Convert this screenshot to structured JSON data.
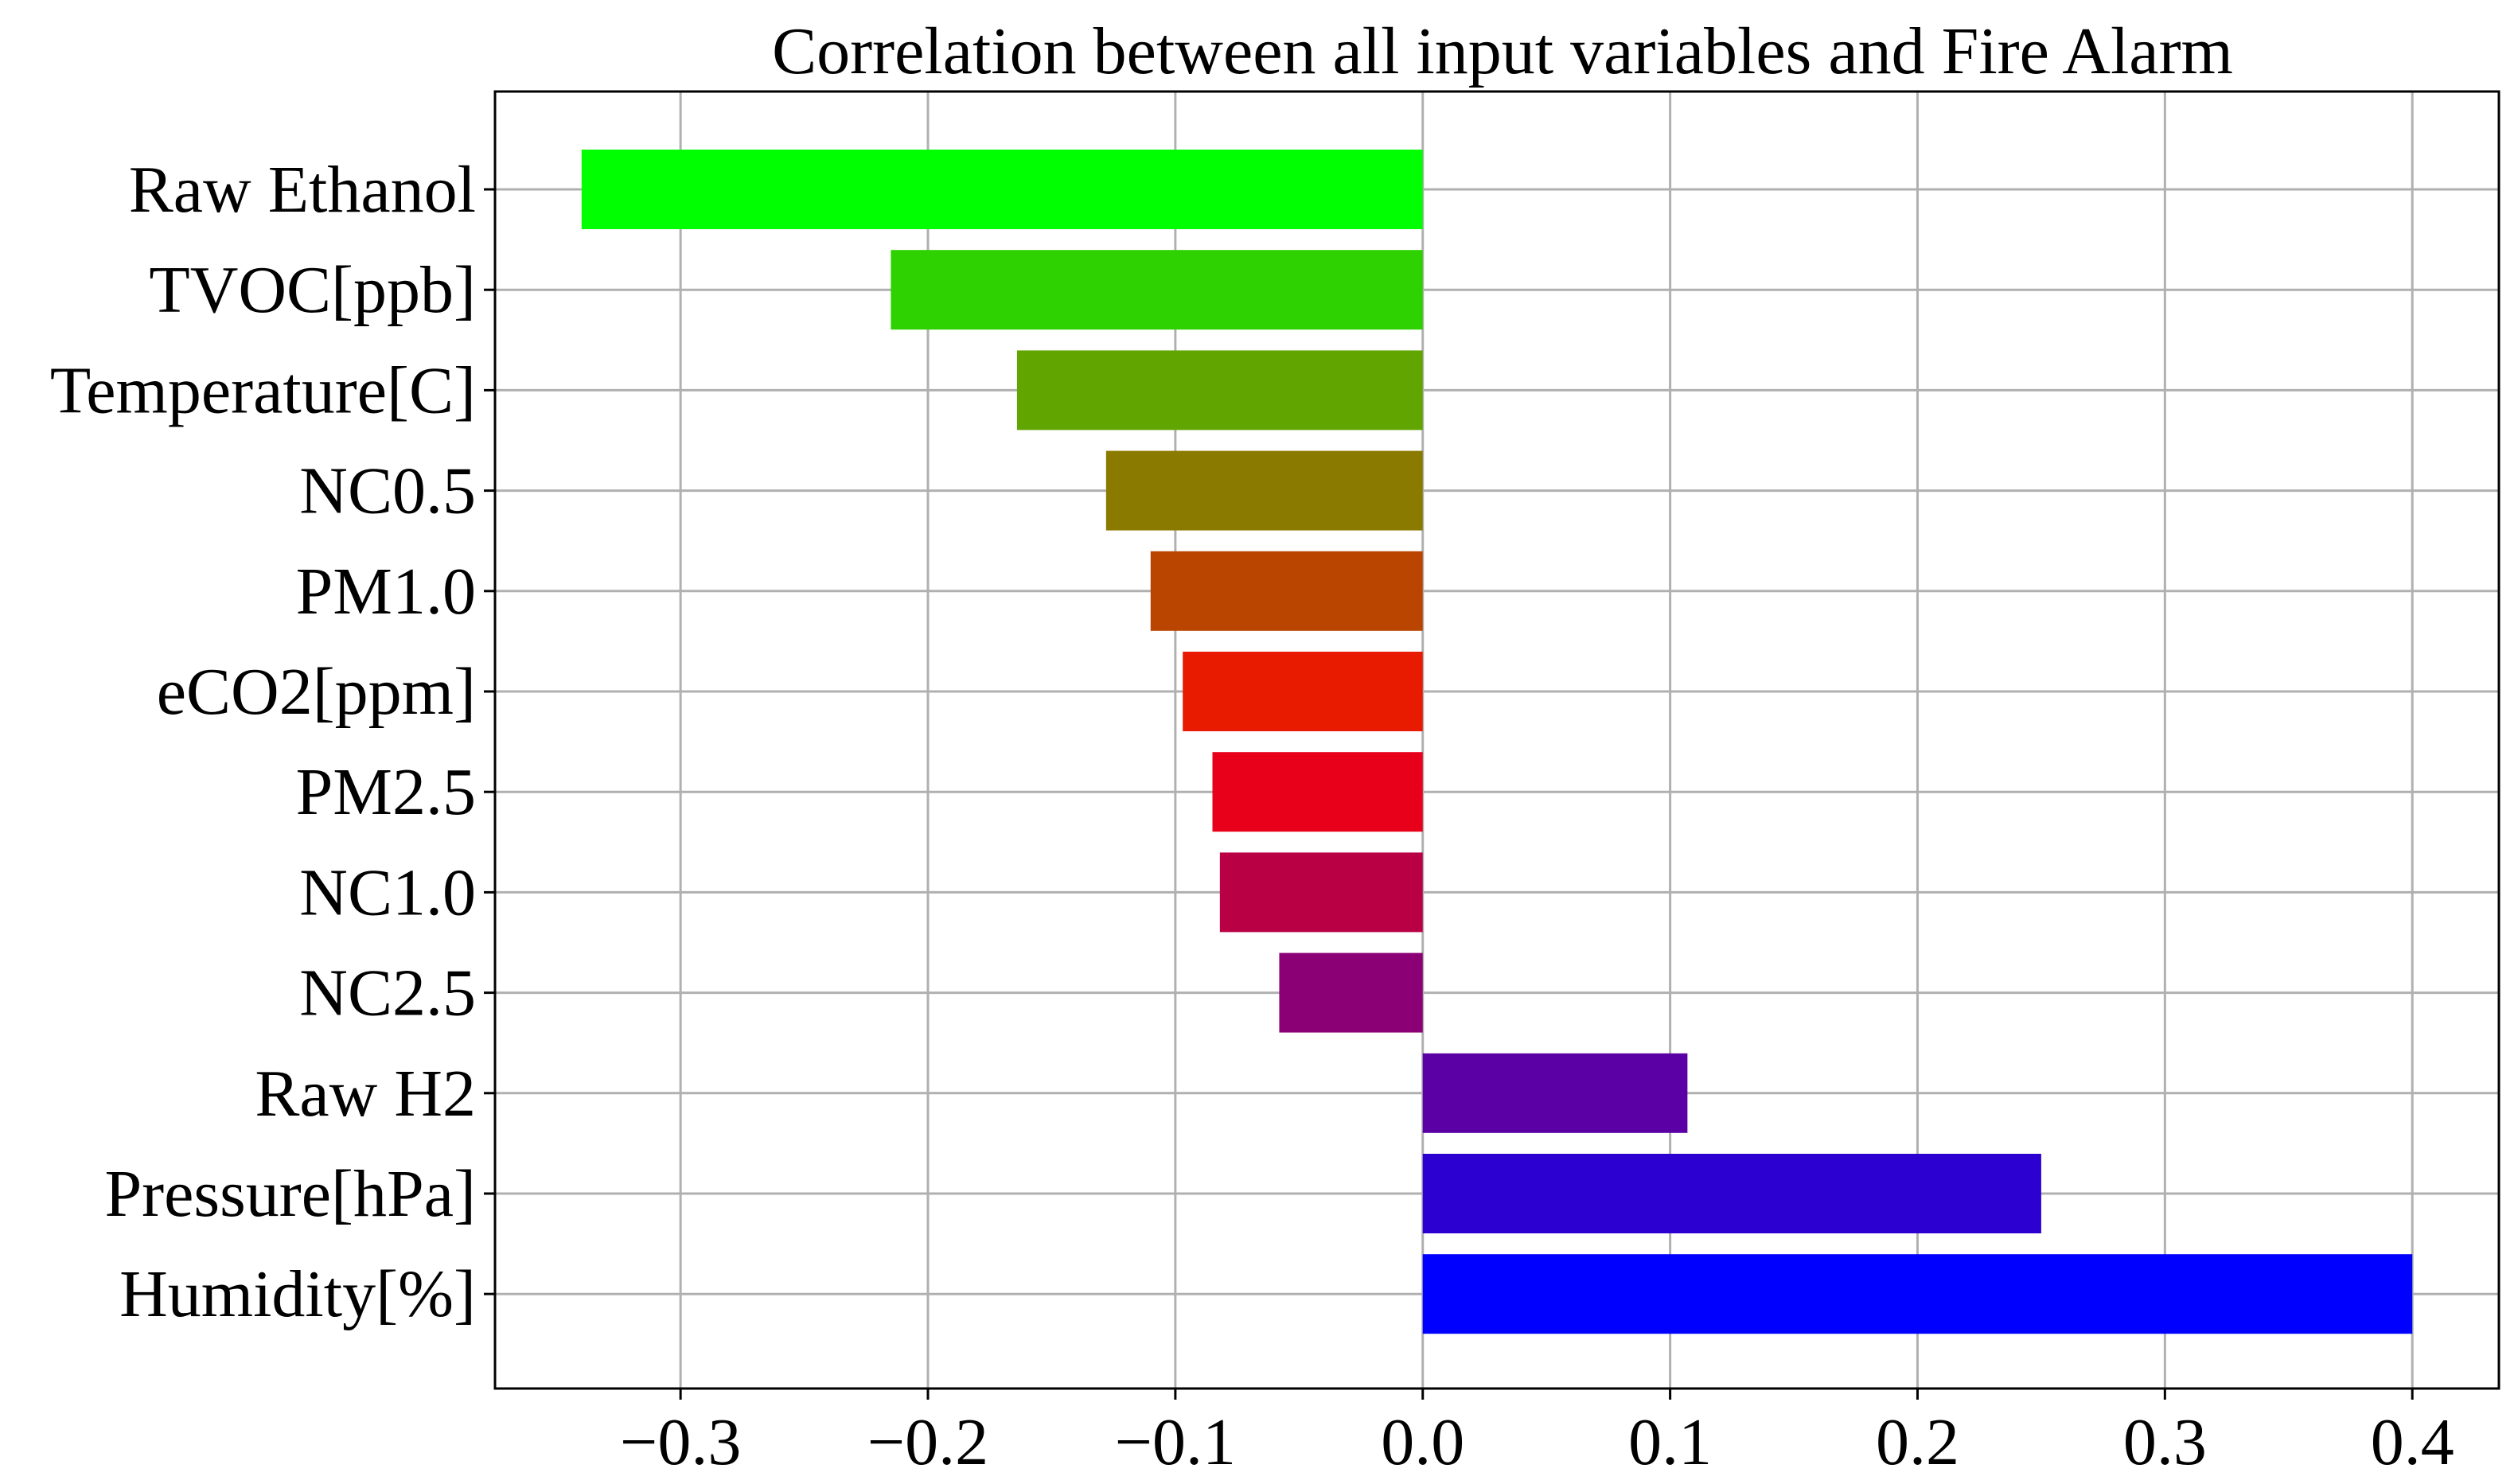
{
  "chart_data": {
    "type": "bar",
    "orientation": "horizontal",
    "title": "Correlation between all input variables and Fire Alarm",
    "xlabel": "",
    "ylabel": "",
    "xlim": [
      -0.375,
      0.435
    ],
    "grid": true,
    "categories": [
      "Raw Ethanol",
      "TVOC[ppb]",
      "Temperature[C]",
      "NC0.5",
      "PM1.0",
      "eCO2[ppm]",
      "PM2.5",
      "NC1.0",
      "NC2.5",
      "Raw H2",
      "Pressure[hPa]",
      "Humidity[%]"
    ],
    "values": [
      -0.34,
      -0.215,
      -0.164,
      -0.128,
      -0.11,
      -0.097,
      -0.085,
      -0.082,
      -0.058,
      0.107,
      0.25,
      0.4
    ],
    "colors": [
      "#00ff00",
      "#2dd200",
      "#60a500",
      "#8b7a00",
      "#ba4500",
      "#e81a00",
      "#e8001a",
      "#ba0045",
      "#8b0074",
      "#5b00a4",
      "#2d00d2",
      "#0000ff"
    ],
    "xticks": [
      -0.3,
      -0.2,
      -0.1,
      0.0,
      0.1,
      0.2,
      0.3,
      0.4
    ],
    "xtick_labels": [
      "−0.3",
      "−0.2",
      "−0.1",
      "0.0",
      "0.1",
      "0.2",
      "0.3",
      "0.4"
    ]
  }
}
